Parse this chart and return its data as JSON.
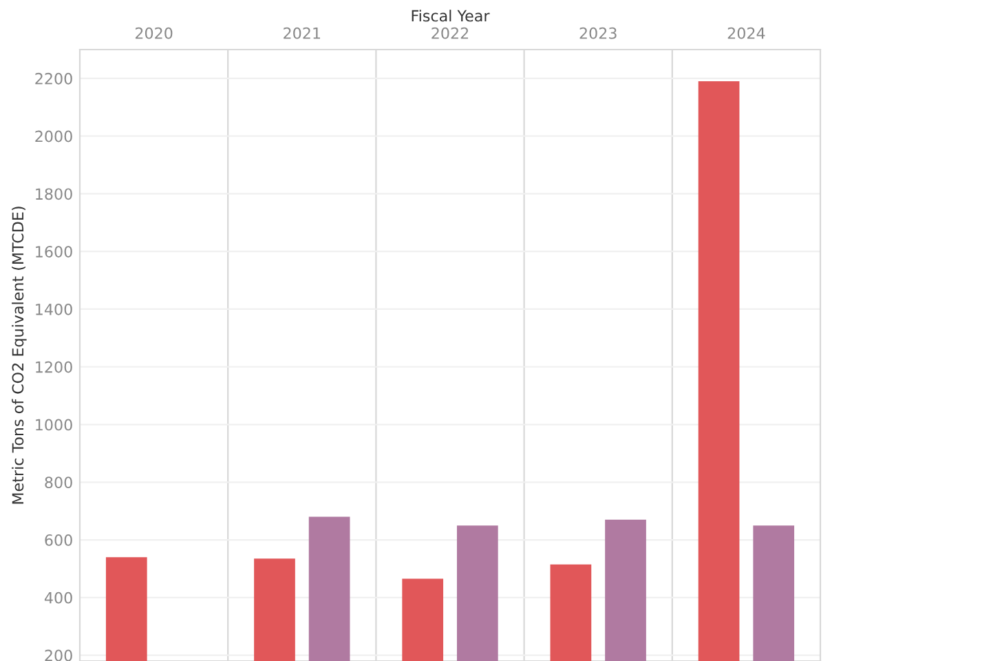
{
  "chart_data": {
    "type": "bar",
    "xlabel": "Fiscal Year",
    "ylabel": "Metric Tons of CO2 Equivalent (MTCDE)",
    "categories": [
      "2020",
      "2021",
      "2022",
      "2023",
      "2024"
    ],
    "series": [
      {
        "color": "#e15759",
        "values": [
          540,
          535,
          465,
          515,
          2190
        ]
      },
      {
        "color": "#b07aa1",
        "values": [
          null,
          680,
          650,
          670,
          650
        ]
      }
    ],
    "ylim": [
      180,
      2300
    ],
    "yticks": [
      200,
      400,
      600,
      800,
      1000,
      1200,
      1400,
      1600,
      1800,
      2000,
      2200
    ],
    "grid": "y"
  }
}
